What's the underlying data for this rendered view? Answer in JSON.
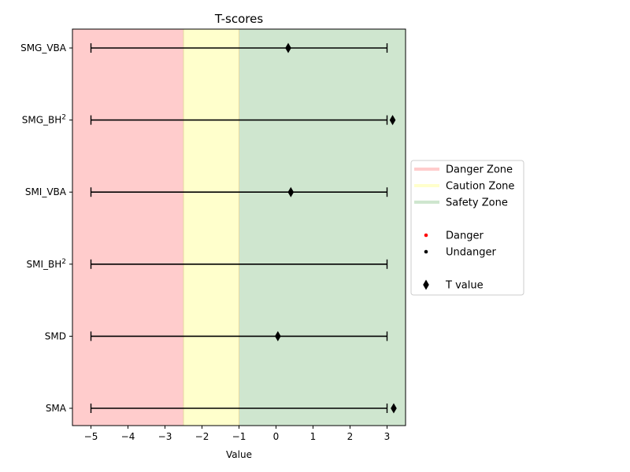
{
  "chart_data": {
    "type": "scatter",
    "title": "T-scores",
    "xlabel": "Value",
    "ylabel": "",
    "xlim": [
      -5.5,
      3.5
    ],
    "x_ticks": [
      -5,
      -4,
      -3,
      -2,
      -1,
      0,
      1,
      2,
      3
    ],
    "x_tick_labels": [
      "−5",
      "−4",
      "−3",
      "−2",
      "−1",
      "0",
      "1",
      "2",
      "3"
    ],
    "categories": [
      {
        "base": "SMG_VBA",
        "sup": ""
      },
      {
        "base": "SMG_BH",
        "sup": "2"
      },
      {
        "base": "SMI_VBA",
        "sup": ""
      },
      {
        "base": "SMI_BH",
        "sup": "2"
      },
      {
        "base": "SMD",
        "sup": ""
      },
      {
        "base": "SMA",
        "sup": ""
      }
    ],
    "ranges": [
      {
        "low": -5,
        "high": 3
      },
      {
        "low": -5,
        "high": 3
      },
      {
        "low": -5,
        "high": 3
      },
      {
        "low": -5,
        "high": 3
      },
      {
        "low": -5,
        "high": 3
      },
      {
        "low": -5,
        "high": 3
      }
    ],
    "t_values": [
      0.33,
      3.15,
      0.4,
      null,
      0.05,
      3.18
    ],
    "zones": [
      {
        "name": "Danger Zone",
        "from": -5.5,
        "to": -2.5,
        "color": "#ffcccc"
      },
      {
        "name": "Caution Zone",
        "from": -2.5,
        "to": -1.0,
        "color": "#ffffcc"
      },
      {
        "name": "Safety Zone",
        "from": -1.0,
        "to": 3.5,
        "color": "#cfe6cf"
      }
    ],
    "grid": false,
    "legend_placement": "center-right",
    "legend": [
      {
        "kind": "line",
        "label": "Danger Zone",
        "color": "#ffcccc"
      },
      {
        "kind": "line",
        "label": "Caution Zone",
        "color": "#ffffcc"
      },
      {
        "kind": "line",
        "label": "Safety Zone",
        "color": "#cfe6cf"
      },
      {
        "kind": "blank",
        "label": ""
      },
      {
        "kind": "dot",
        "label": "Danger",
        "color": "#ff0000"
      },
      {
        "kind": "dot",
        "label": "Undanger",
        "color": "#000000"
      },
      {
        "kind": "blank",
        "label": ""
      },
      {
        "kind": "diamond",
        "label": "T value",
        "color": "#000000"
      }
    ]
  }
}
